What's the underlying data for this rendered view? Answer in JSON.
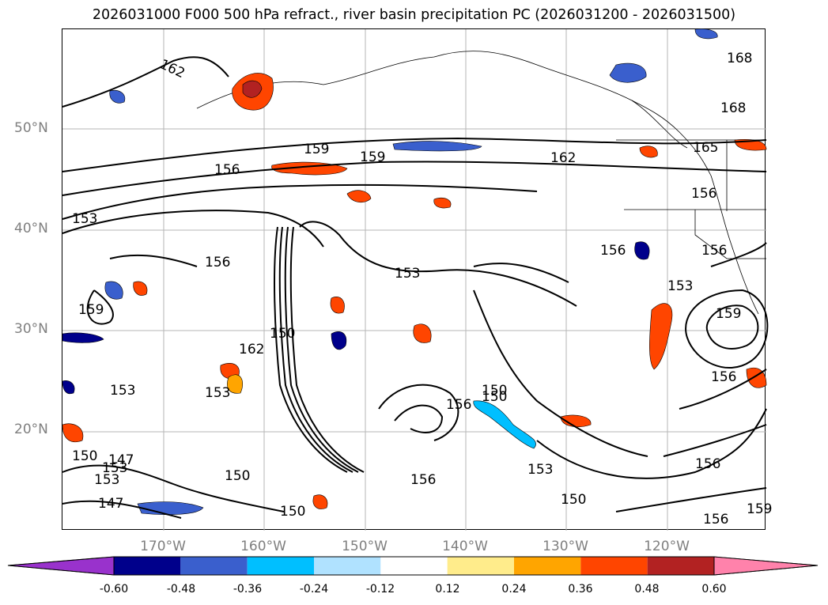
{
  "title": "2026031000 F000 500 hPa refract., river basin precipitation PC (2026031200 - 2026031500)",
  "latitude_labels": [
    "50°N",
    "40°N",
    "30°N",
    "20°N"
  ],
  "longitude_labels": [
    "170°W",
    "160°W",
    "150°W",
    "140°W",
    "130°W",
    "120°W"
  ],
  "colorbar": {
    "ticks": [
      "-0.60",
      "-0.48",
      "-0.36",
      "-0.24",
      "-0.12",
      "0.12",
      "0.24",
      "0.36",
      "0.48",
      "0.60"
    ],
    "colors": [
      "#9932cc",
      "#00008b",
      "#3a5fcd",
      "#00bfff",
      "#b0e2ff",
      "#ffffff",
      "#ffec8b",
      "#ffa500",
      "#ff4500",
      "#b22222",
      "#ff82ab"
    ]
  },
  "contour_labels": [
    "162",
    "168",
    "168",
    "159",
    "159",
    "162",
    "165",
    "156",
    "156",
    "153",
    "156",
    "156",
    "156",
    "153",
    "153",
    "159",
    "153",
    "150",
    "162",
    "153",
    "150",
    "156",
    "150",
    "153",
    "156",
    "159",
    "156",
    "153",
    "150",
    "147",
    "153",
    "150",
    "147",
    "150",
    "156",
    "159",
    "156",
    "150"
  ],
  "legend_colors": {
    "negative": [
      "#9932cc",
      "#00008b",
      "#3a5fcd",
      "#00bfff",
      "#b0e2ff"
    ],
    "positive": [
      "#ffec8b",
      "#ffa500",
      "#ff4500",
      "#b22222",
      "#ff82ab"
    ]
  }
}
